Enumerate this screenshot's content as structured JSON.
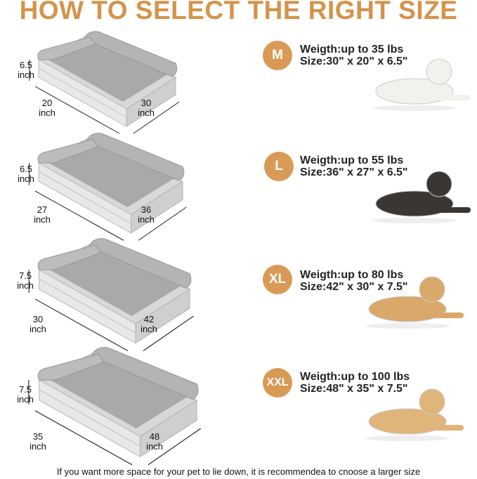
{
  "title": "HOW TO SELECT THE RIGHT SIZE",
  "accent_color": "#d99a55",
  "title_color": "#d4944a",
  "sizes": [
    {
      "badge": "M",
      "weight": "Weigth:up to 35 lbs",
      "size": "Size:30\" x 20\" x 6.5\"",
      "height_label": [
        "6.5",
        "inch"
      ],
      "depth_label": [
        "20",
        "inch"
      ],
      "width_label": [
        "30",
        "inch"
      ],
      "dog": "white poodle"
    },
    {
      "badge": "L",
      "weight": "Weigth:up to 55 lbs",
      "size": "Size:36\" x 27\" x 6.5\"",
      "height_label": [
        "6.5",
        "inch"
      ],
      "depth_label": [
        "27",
        "inch"
      ],
      "width_label": [
        "36",
        "inch"
      ],
      "dog": "husky"
    },
    {
      "badge": "XL",
      "weight": "Weigth:up to 80 lbs",
      "size": "Size:42\" x 30\" x 7.5\"",
      "height_label": [
        "7.5",
        "inch"
      ],
      "depth_label": [
        "30",
        "inch"
      ],
      "width_label": [
        "42",
        "inch"
      ],
      "dog": "golden retriever"
    },
    {
      "badge": "XXL",
      "weight": "Weigth:up to 100 lbs",
      "size": "Size:48\" x 35\" x 7.5\"",
      "height_label": [
        "7.5",
        "inch"
      ],
      "depth_label": [
        "35",
        "inch"
      ],
      "width_label": [
        "48",
        "inch"
      ],
      "dog": "labrador"
    }
  ],
  "note": "If you want more space for your pet to lie down, it is recommendea to cnoose a larger size"
}
